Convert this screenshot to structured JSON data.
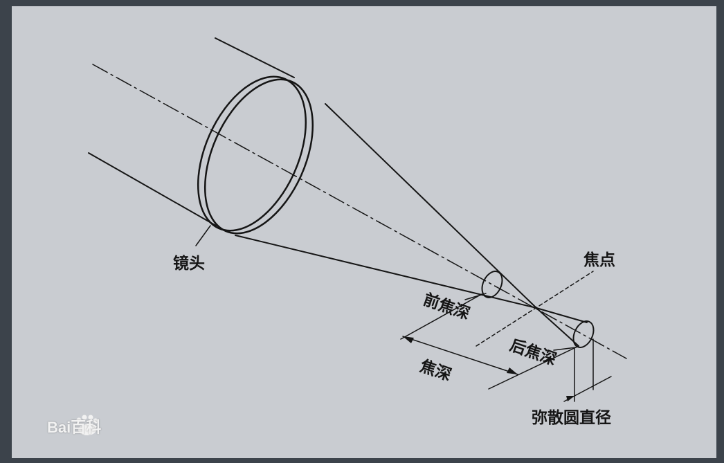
{
  "labels": {
    "lens": "镜头",
    "focal_point": "焦点",
    "front_depth": "前焦深",
    "depth_of_focus": "焦深",
    "back_depth": "后焦深",
    "circle_of_confusion": "弥散圆直径"
  },
  "watermark": {
    "text": "Bai百科",
    "logo_icon": "baidu-paw-icon"
  },
  "colors": {
    "background": "#c9ccd1",
    "frame": "#3c434b",
    "ink": "#151515"
  }
}
